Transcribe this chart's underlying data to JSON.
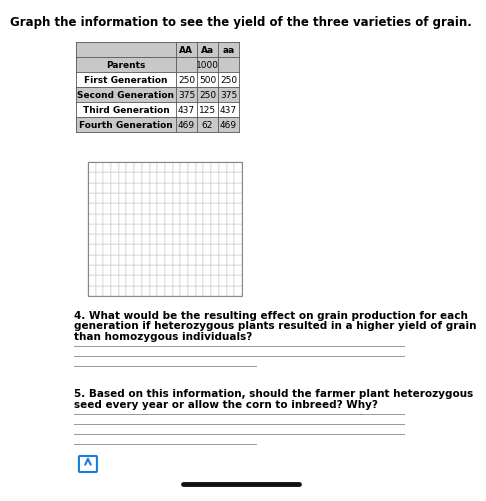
{
  "title": "Graph the information to see the yield of the three varieties of grain.",
  "table_headers": [
    "",
    "AA",
    "Aa",
    "aa"
  ],
  "table_rows": [
    [
      "Parents",
      "",
      "1000",
      ""
    ],
    [
      "First Generation",
      "250",
      "500",
      "250"
    ],
    [
      "Second Generation",
      "375",
      "250",
      "375"
    ],
    [
      "Third Generation",
      "437",
      "125",
      "437"
    ],
    [
      "Fourth Generation",
      "469",
      "62",
      "469"
    ]
  ],
  "row_bgs": [
    "#c8c8c8",
    "#ffffff",
    "#c8c8c8",
    "#ffffff",
    "#c8c8c8"
  ],
  "q4_text": "4. What would be the resulting effect on grain production for each\ngeneration if heterozygous plants resulted in a higher yield of grain\nthan homozygous individuals?",
  "q5_text": "5. Based on this information, should the farmer plant heterozygous\nseed every year or allow the corn to inbreed? Why?",
  "q4_lines": 3,
  "q5_lines": 4,
  "grid_rows": 13,
  "grid_cols": 20,
  "bg_color": "#ffffff",
  "table_header_bg": "#c8c8c8",
  "grid_line_color": "#bbbbbb",
  "grid_border_color": "#888888",
  "answer_line_color": "#999999",
  "title_fontsize": 8.5,
  "table_fontsize": 6.5,
  "question_fontsize": 7.5
}
